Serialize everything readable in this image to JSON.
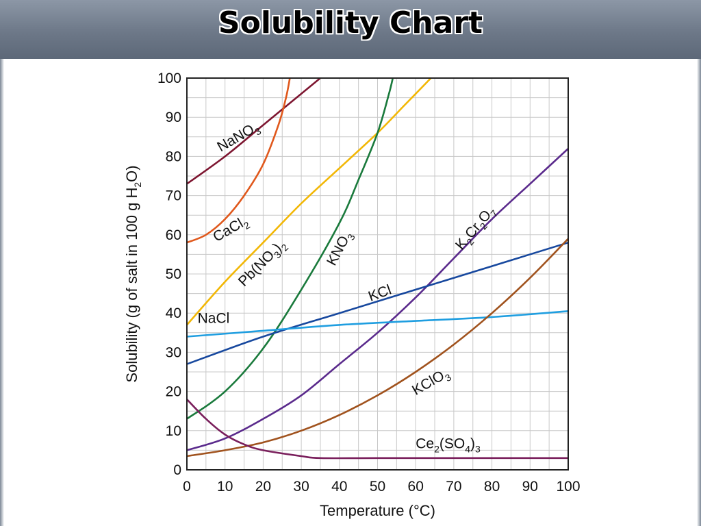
{
  "header": {
    "title": "Solubility Chart"
  },
  "chart_data": {
    "type": "line",
    "xlabel": "Temperature (°C)",
    "ylabel": "Solubility (g of salt in 100 g H₂O)",
    "xlim": [
      0,
      100
    ],
    "ylim": [
      0,
      100
    ],
    "xticks": [
      0,
      10,
      20,
      30,
      40,
      50,
      60,
      70,
      80,
      90,
      100
    ],
    "yticks": [
      0,
      10,
      20,
      30,
      40,
      50,
      60,
      70,
      80,
      90,
      100
    ],
    "grid": true,
    "series": [
      {
        "name": "NaNO₃",
        "color": "#7d1530",
        "points": [
          [
            0,
            73
          ],
          [
            10,
            80
          ],
          [
            20,
            88
          ],
          [
            30,
            96
          ],
          [
            35,
            100
          ]
        ]
      },
      {
        "name": "CaCl₂",
        "color": "#e0581c",
        "points": [
          [
            0,
            58
          ],
          [
            5,
            60
          ],
          [
            10,
            64
          ],
          [
            15,
            70
          ],
          [
            20,
            78
          ],
          [
            24,
            88
          ],
          [
            26,
            95
          ],
          [
            27,
            100
          ]
        ]
      },
      {
        "name": "Pb(NO₃)₂",
        "color": "#f2b705",
        "points": [
          [
            0,
            37
          ],
          [
            10,
            48
          ],
          [
            20,
            58
          ],
          [
            30,
            68
          ],
          [
            40,
            77
          ],
          [
            50,
            86
          ],
          [
            57,
            93
          ],
          [
            64,
            100
          ]
        ]
      },
      {
        "name": "KNO₃",
        "color": "#1a7a3c",
        "points": [
          [
            0,
            13
          ],
          [
            10,
            20
          ],
          [
            20,
            31
          ],
          [
            30,
            46
          ],
          [
            40,
            63
          ],
          [
            45,
            74
          ],
          [
            50,
            86
          ],
          [
            53,
            96
          ],
          [
            54,
            100
          ]
        ]
      },
      {
        "name": "K₂Cr₂O₇",
        "color": "#5a2a8c",
        "points": [
          [
            0,
            5
          ],
          [
            10,
            8
          ],
          [
            20,
            13
          ],
          [
            30,
            19
          ],
          [
            40,
            27
          ],
          [
            50,
            35
          ],
          [
            60,
            44
          ],
          [
            70,
            54
          ],
          [
            80,
            64
          ],
          [
            90,
            73
          ],
          [
            100,
            82
          ]
        ]
      },
      {
        "name": "KCl",
        "color": "#17489e",
        "points": [
          [
            0,
            27
          ],
          [
            20,
            34
          ],
          [
            40,
            40
          ],
          [
            60,
            46
          ],
          [
            80,
            52
          ],
          [
            100,
            58
          ]
        ]
      },
      {
        "name": "NaCl",
        "color": "#1f9ee0",
        "points": [
          [
            0,
            34
          ],
          [
            20,
            35.5
          ],
          [
            40,
            37
          ],
          [
            60,
            38
          ],
          [
            80,
            39
          ],
          [
            100,
            40.5
          ]
        ]
      },
      {
        "name": "KClO₃",
        "color": "#a0521d",
        "points": [
          [
            0,
            3.5
          ],
          [
            10,
            5
          ],
          [
            20,
            7
          ],
          [
            30,
            10
          ],
          [
            40,
            14
          ],
          [
            50,
            19
          ],
          [
            60,
            25
          ],
          [
            70,
            32
          ],
          [
            80,
            40
          ],
          [
            90,
            49
          ],
          [
            100,
            59
          ]
        ]
      },
      {
        "name": "Ce₂(SO₄)₃",
        "color": "#7a1f5c",
        "points": [
          [
            0,
            18
          ],
          [
            5,
            13
          ],
          [
            10,
            9
          ],
          [
            15,
            6.5
          ],
          [
            20,
            5
          ],
          [
            30,
            3.5
          ],
          [
            35,
            3
          ],
          [
            50,
            3
          ],
          [
            75,
            3
          ],
          [
            100,
            3
          ]
        ]
      }
    ],
    "labels": [
      {
        "html": "NaNO<tspan class='sub' dy='6'>3</tspan>",
        "x": 14,
        "y": 84,
        "rot": -30
      },
      {
        "html": "CaCl<tspan class='sub' dy='6'>2</tspan>",
        "x": 12,
        "y": 60.5,
        "rot": -30
      },
      {
        "html": "Pb(NO<tspan class='sub' dy='6'>3</tspan><tspan dy='-6'>)</tspan><tspan class='sub' dy='6'>2</tspan>",
        "x": 20.5,
        "y": 52,
        "rot": -45
      },
      {
        "html": "KNO<tspan class='sub' dy='6'>3</tspan>",
        "x": 41,
        "y": 56,
        "rot": -62
      },
      {
        "html": "K<tspan class='sub' dy='6'>2</tspan><tspan dy='-6'>Cr</tspan><tspan class='sub' dy='6'>2</tspan><tspan dy='-6'>O</tspan><tspan class='sub' dy='6'>7</tspan>",
        "x": 76.5,
        "y": 61,
        "rot": -50
      },
      {
        "html": "KCl",
        "x": 51,
        "y": 44,
        "rot": -20
      },
      {
        "html": "NaCl",
        "x": 7,
        "y": 37.5,
        "rot": 0
      },
      {
        "html": "KClO<tspan class='sub' dy='6'>3</tspan>",
        "x": 64.5,
        "y": 21.5,
        "rot": -30
      },
      {
        "html": "Ce<tspan class='sub' dy='6'>2</tspan><tspan dy='-6'>(SO</tspan><tspan class='sub' dy='6'>4</tspan><tspan dy='-6'>)</tspan><tspan class='sub' dy='6'>3</tspan>",
        "x": 68.5,
        "y": 5.5,
        "rot": 0
      }
    ]
  }
}
